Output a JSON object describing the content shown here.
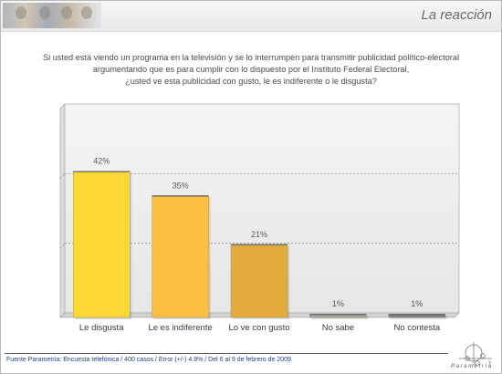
{
  "header": {
    "section_title": "La reacción"
  },
  "question": {
    "lines": [
      "Si usted está viendo un programa en la televisión y se lo interrumpen para transmitir publicidad político-electoral",
      "argumentando que es para cumplir con lo dispuesto por el Instituto Federal Electoral,",
      "¿usted  ve esta publicidad con gusto, le es indiferente o le disgusta?"
    ]
  },
  "chart_data": {
    "type": "bar",
    "title": "",
    "xlabel": "",
    "ylabel": "",
    "categories": [
      "Le disgusta",
      "Le es indiferente",
      "Lo ve con gusto",
      "No sabe",
      "No contesta"
    ],
    "values": [
      42,
      35,
      21,
      1,
      1
    ],
    "value_labels": [
      "42%",
      "35%",
      "21%",
      "1%",
      "1%"
    ],
    "ylim": [
      0,
      60
    ],
    "grid": true,
    "bar_colors": [
      "#fdd835",
      "#fdbf40",
      "#e2ab3c",
      "#a5a5a5",
      "#7f7f7f"
    ]
  },
  "footer": {
    "source": "Fuente Parametría: Encuesta telefónica / 400 casos / Error (+/-) 4.9% / Del 6 al 9 de febrero de 2009.",
    "brand": "Parametría"
  }
}
